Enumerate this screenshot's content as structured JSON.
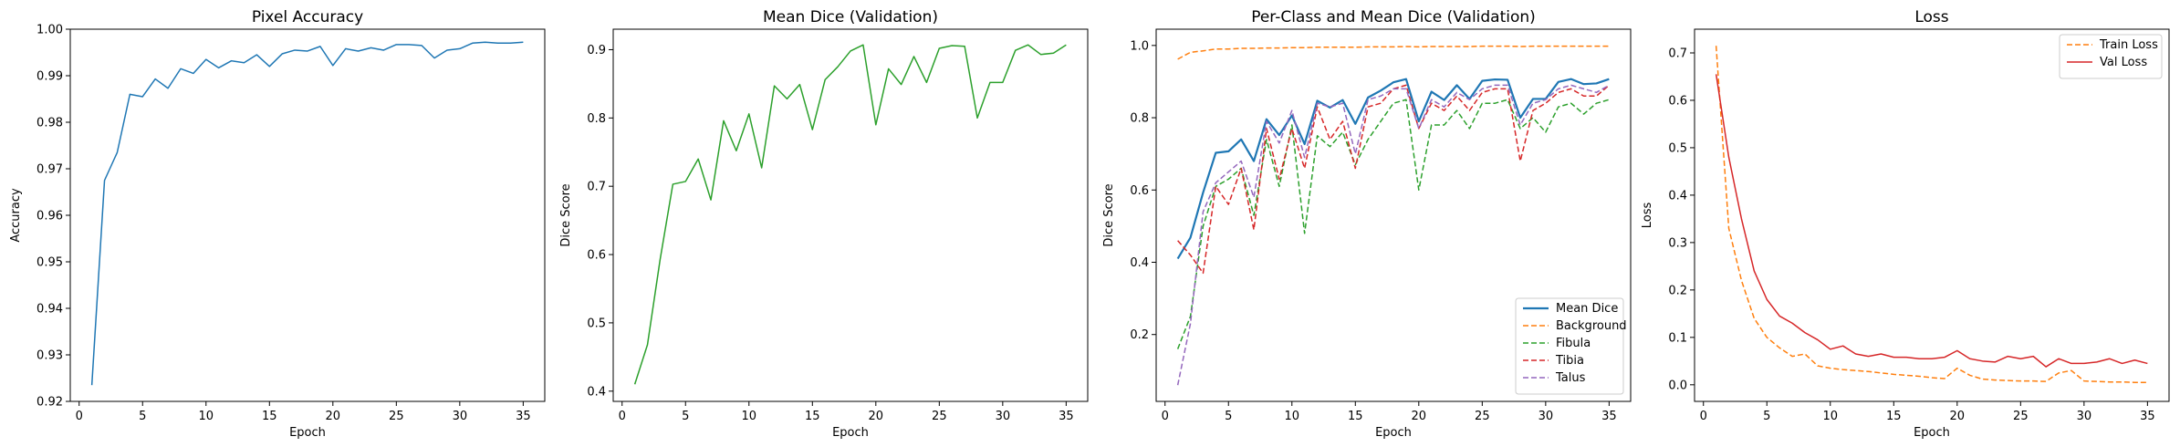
{
  "colors": {
    "blue": "#1f77b4",
    "orange": "#ff7f0e",
    "green": "#2ca02c",
    "red": "#d62728",
    "purple": "#9467bd"
  },
  "chart_data": [
    {
      "type": "line",
      "title": "Pixel Accuracy",
      "xlabel": "Epoch",
      "ylabel": "Accuracy",
      "xlim": [
        -0.7,
        36.7
      ],
      "ylim": [
        0.92,
        1.0
      ],
      "xticks": [
        0,
        5,
        10,
        15,
        20,
        25,
        30,
        35
      ],
      "yticks": [
        0.92,
        0.93,
        0.94,
        0.95,
        0.96,
        0.97,
        0.98,
        0.99,
        1.0
      ],
      "ytick_labels": [
        "0.92",
        "0.93",
        "0.94",
        "0.95",
        "0.96",
        "0.97",
        "0.98",
        "0.99",
        "1.00"
      ],
      "legend": null,
      "series": [
        {
          "color": "#1f77b4",
          "dash": "solid",
          "width": 1.5,
          "x": [
            1,
            2,
            3,
            4,
            5,
            6,
            7,
            8,
            9,
            10,
            11,
            12,
            13,
            14,
            15,
            16,
            17,
            18,
            19,
            20,
            21,
            22,
            23,
            24,
            25,
            26,
            27,
            28,
            29,
            30,
            31,
            32,
            33,
            34,
            35
          ],
          "values": [
            0.9235,
            0.9675,
            0.9735,
            0.986,
            0.9855,
            0.9893,
            0.9873,
            0.9915,
            0.9905,
            0.9935,
            0.9917,
            0.9932,
            0.9928,
            0.9945,
            0.992,
            0.9947,
            0.9955,
            0.9953,
            0.9963,
            0.9922,
            0.9958,
            0.9953,
            0.996,
            0.9955,
            0.9967,
            0.9967,
            0.9965,
            0.9938,
            0.9955,
            0.9958,
            0.997,
            0.9972,
            0.997,
            0.997,
            0.9972
          ]
        }
      ]
    },
    {
      "type": "line",
      "title": "Mean Dice (Validation)",
      "xlabel": "Epoch",
      "ylabel": "Dice Score",
      "xlim": [
        -0.7,
        36.7
      ],
      "ylim": [
        0.385,
        0.93
      ],
      "xticks": [
        0,
        5,
        10,
        15,
        20,
        25,
        30,
        35
      ],
      "yticks": [
        0.4,
        0.5,
        0.6,
        0.7,
        0.8,
        0.9
      ],
      "ytick_labels": [
        "0.4",
        "0.5",
        "0.6",
        "0.7",
        "0.8",
        "0.9"
      ],
      "legend": null,
      "series": [
        {
          "color": "#2ca02c",
          "dash": "solid",
          "width": 1.5,
          "x": [
            1,
            2,
            3,
            4,
            5,
            6,
            7,
            8,
            9,
            10,
            11,
            12,
            13,
            14,
            15,
            16,
            17,
            18,
            19,
            20,
            21,
            22,
            23,
            24,
            25,
            26,
            27,
            28,
            29,
            30,
            31,
            32,
            33,
            34,
            35
          ],
          "values": [
            0.41,
            0.468,
            0.593,
            0.703,
            0.707,
            0.74,
            0.68,
            0.796,
            0.752,
            0.806,
            0.727,
            0.847,
            0.828,
            0.849,
            0.783,
            0.856,
            0.875,
            0.898,
            0.907,
            0.79,
            0.872,
            0.849,
            0.89,
            0.852,
            0.902,
            0.906,
            0.905,
            0.8,
            0.852,
            0.852,
            0.899,
            0.907,
            0.893,
            0.895,
            0.907
          ]
        }
      ]
    },
    {
      "type": "line",
      "title": "Per-Class and Mean Dice (Validation)",
      "xlabel": "Epoch",
      "ylabel": "Dice Score",
      "xlim": [
        -0.7,
        36.7
      ],
      "ylim": [
        0.015,
        1.045
      ],
      "xticks": [
        0,
        5,
        10,
        15,
        20,
        25,
        30,
        35
      ],
      "yticks": [
        0.2,
        0.4,
        0.6,
        0.8,
        1.0
      ],
      "ytick_labels": [
        "0.2",
        "0.4",
        "0.6",
        "0.8",
        "1.0"
      ],
      "legend": "lower-right",
      "series": [
        {
          "name": "Mean Dice",
          "color": "#1f77b4",
          "dash": "solid",
          "width": 2.2,
          "x": [
            1,
            2,
            3,
            4,
            5,
            6,
            7,
            8,
            9,
            10,
            11,
            12,
            13,
            14,
            15,
            16,
            17,
            18,
            19,
            20,
            21,
            22,
            23,
            24,
            25,
            26,
            27,
            28,
            29,
            30,
            31,
            32,
            33,
            34,
            35
          ],
          "values": [
            0.41,
            0.468,
            0.593,
            0.703,
            0.707,
            0.74,
            0.68,
            0.796,
            0.752,
            0.806,
            0.727,
            0.847,
            0.828,
            0.849,
            0.783,
            0.856,
            0.875,
            0.898,
            0.907,
            0.79,
            0.872,
            0.849,
            0.89,
            0.852,
            0.902,
            0.906,
            0.905,
            0.8,
            0.852,
            0.852,
            0.899,
            0.907,
            0.893,
            0.895,
            0.907
          ]
        },
        {
          "name": "Background",
          "color": "#ff7f0e",
          "dash": "dashed",
          "width": 1.5,
          "x": [
            1,
            2,
            3,
            4,
            5,
            6,
            7,
            8,
            9,
            10,
            11,
            12,
            13,
            14,
            15,
            16,
            17,
            18,
            19,
            20,
            21,
            22,
            23,
            24,
            25,
            26,
            27,
            28,
            29,
            30,
            31,
            32,
            33,
            34,
            35
          ],
          "values": [
            0.962,
            0.981,
            0.985,
            0.99,
            0.99,
            0.992,
            0.992,
            0.993,
            0.993,
            0.994,
            0.994,
            0.995,
            0.995,
            0.995,
            0.995,
            0.996,
            0.996,
            0.996,
            0.997,
            0.996,
            0.997,
            0.997,
            0.997,
            0.997,
            0.998,
            0.998,
            0.998,
            0.997,
            0.998,
            0.998,
            0.998,
            0.998,
            0.998,
            0.998,
            0.998
          ]
        },
        {
          "name": "Fibula",
          "color": "#2ca02c",
          "dash": "dashed",
          "width": 1.5,
          "x": [
            1,
            2,
            3,
            4,
            5,
            6,
            7,
            8,
            9,
            10,
            11,
            12,
            13,
            14,
            15,
            16,
            17,
            18,
            19,
            20,
            21,
            22,
            23,
            24,
            25,
            26,
            27,
            28,
            29,
            30,
            31,
            32,
            33,
            34,
            35
          ],
          "values": [
            0.16,
            0.25,
            0.5,
            0.61,
            0.63,
            0.66,
            0.53,
            0.74,
            0.61,
            0.78,
            0.48,
            0.75,
            0.72,
            0.76,
            0.67,
            0.74,
            0.79,
            0.84,
            0.85,
            0.6,
            0.78,
            0.78,
            0.82,
            0.77,
            0.84,
            0.84,
            0.85,
            0.77,
            0.8,
            0.76,
            0.83,
            0.84,
            0.81,
            0.84,
            0.85
          ]
        },
        {
          "name": "Tibia",
          "color": "#d62728",
          "dash": "dashed",
          "width": 1.5,
          "x": [
            1,
            2,
            3,
            4,
            5,
            6,
            7,
            8,
            9,
            10,
            11,
            12,
            13,
            14,
            15,
            16,
            17,
            18,
            19,
            20,
            21,
            22,
            23,
            24,
            25,
            26,
            27,
            28,
            29,
            30,
            31,
            32,
            33,
            34,
            35
          ],
          "values": [
            0.46,
            0.42,
            0.37,
            0.61,
            0.56,
            0.66,
            0.49,
            0.77,
            0.63,
            0.77,
            0.66,
            0.83,
            0.74,
            0.79,
            0.66,
            0.83,
            0.84,
            0.88,
            0.89,
            0.77,
            0.84,
            0.82,
            0.86,
            0.82,
            0.87,
            0.88,
            0.88,
            0.68,
            0.82,
            0.84,
            0.87,
            0.88,
            0.86,
            0.86,
            0.89
          ]
        },
        {
          "name": "Talus",
          "color": "#9467bd",
          "dash": "dashed",
          "width": 1.5,
          "x": [
            1,
            2,
            3,
            4,
            5,
            6,
            7,
            8,
            9,
            10,
            11,
            12,
            13,
            14,
            15,
            16,
            17,
            18,
            19,
            20,
            21,
            22,
            23,
            24,
            25,
            26,
            27,
            28,
            29,
            30,
            31,
            32,
            33,
            34,
            35
          ],
          "values": [
            0.06,
            0.23,
            0.54,
            0.62,
            0.65,
            0.68,
            0.58,
            0.79,
            0.73,
            0.82,
            0.69,
            0.84,
            0.83,
            0.84,
            0.7,
            0.85,
            0.86,
            0.88,
            0.88,
            0.77,
            0.85,
            0.83,
            0.87,
            0.85,
            0.88,
            0.89,
            0.89,
            0.78,
            0.84,
            0.85,
            0.88,
            0.89,
            0.88,
            0.87,
            0.89
          ]
        }
      ]
    },
    {
      "type": "line",
      "title": "Loss",
      "xlabel": "Epoch",
      "ylabel": "Loss",
      "xlim": [
        -0.7,
        36.7
      ],
      "ylim": [
        -0.035,
        0.75
      ],
      "xticks": [
        0,
        5,
        10,
        15,
        20,
        25,
        30,
        35
      ],
      "yticks": [
        0.0,
        0.1,
        0.2,
        0.3,
        0.4,
        0.5,
        0.6,
        0.7
      ],
      "ytick_labels": [
        "0.0",
        "0.1",
        "0.2",
        "0.3",
        "0.4",
        "0.5",
        "0.6",
        "0.7"
      ],
      "legend": "upper-right",
      "series": [
        {
          "name": "Train Loss",
          "color": "#ff7f0e",
          "dash": "dashed",
          "width": 1.5,
          "x": [
            1,
            2,
            3,
            4,
            5,
            6,
            7,
            8,
            9,
            10,
            11,
            12,
            13,
            14,
            15,
            16,
            17,
            18,
            19,
            20,
            21,
            22,
            23,
            24,
            25,
            26,
            27,
            28,
            29,
            30,
            31,
            32,
            33,
            34,
            35
          ],
          "values": [
            0.715,
            0.33,
            0.22,
            0.14,
            0.1,
            0.078,
            0.06,
            0.065,
            0.04,
            0.035,
            0.032,
            0.03,
            0.028,
            0.025,
            0.022,
            0.02,
            0.018,
            0.015,
            0.013,
            0.035,
            0.02,
            0.012,
            0.01,
            0.009,
            0.008,
            0.008,
            0.007,
            0.025,
            0.03,
            0.008,
            0.007,
            0.006,
            0.006,
            0.005,
            0.005
          ]
        },
        {
          "name": "Val Loss",
          "color": "#d62728",
          "dash": "solid",
          "width": 1.5,
          "x": [
            1,
            2,
            3,
            4,
            5,
            6,
            7,
            8,
            9,
            10,
            11,
            12,
            13,
            14,
            15,
            16,
            17,
            18,
            19,
            20,
            21,
            22,
            23,
            24,
            25,
            26,
            27,
            28,
            29,
            30,
            31,
            32,
            33,
            34,
            35
          ],
          "values": [
            0.655,
            0.48,
            0.35,
            0.24,
            0.18,
            0.145,
            0.13,
            0.11,
            0.095,
            0.075,
            0.082,
            0.065,
            0.06,
            0.065,
            0.058,
            0.058,
            0.055,
            0.055,
            0.058,
            0.072,
            0.055,
            0.05,
            0.048,
            0.06,
            0.055,
            0.06,
            0.038,
            0.055,
            0.045,
            0.045,
            0.048,
            0.055,
            0.045,
            0.052,
            0.045
          ]
        }
      ]
    }
  ]
}
